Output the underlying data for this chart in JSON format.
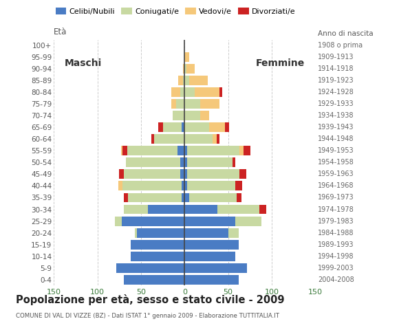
{
  "age_groups_bottom_to_top": [
    "0-4",
    "5-9",
    "10-14",
    "15-19",
    "20-24",
    "25-29",
    "30-34",
    "35-39",
    "40-44",
    "45-49",
    "50-54",
    "55-59",
    "60-64",
    "65-69",
    "70-74",
    "75-79",
    "80-84",
    "85-89",
    "90-94",
    "95-99",
    "100+"
  ],
  "birth_years_bottom_to_top": [
    "2004-2008",
    "1999-2003",
    "1994-1998",
    "1989-1993",
    "1984-1988",
    "1979-1983",
    "1974-1978",
    "1969-1973",
    "1964-1968",
    "1959-1963",
    "1954-1958",
    "1949-1953",
    "1944-1948",
    "1939-1943",
    "1934-1938",
    "1929-1933",
    "1924-1928",
    "1919-1923",
    "1914-1918",
    "1909-1913",
    "1908 o prima"
  ],
  "colors": {
    "celibe": "#4a7cc4",
    "coniugato": "#c8d9a2",
    "vedovo": "#f5c87a",
    "divorziato": "#cc2222"
  },
  "maschi_celibe": [
    70,
    78,
    62,
    62,
    55,
    72,
    42,
    3,
    3,
    5,
    5,
    8,
    0,
    3,
    0,
    0,
    0,
    0,
    0,
    0,
    0
  ],
  "maschi_coniugato": [
    0,
    0,
    0,
    0,
    2,
    8,
    28,
    62,
    68,
    65,
    62,
    58,
    35,
    22,
    14,
    10,
    5,
    2,
    0,
    0,
    0
  ],
  "maschi_vedovo": [
    0,
    0,
    0,
    0,
    0,
    0,
    0,
    0,
    5,
    0,
    0,
    2,
    0,
    0,
    0,
    5,
    10,
    5,
    2,
    0,
    0
  ],
  "maschi_divorziato": [
    0,
    0,
    0,
    0,
    0,
    0,
    0,
    5,
    0,
    5,
    0,
    5,
    3,
    5,
    0,
    0,
    0,
    0,
    0,
    0,
    0
  ],
  "femmine_celibe": [
    62,
    72,
    58,
    62,
    50,
    58,
    38,
    5,
    3,
    3,
    3,
    3,
    0,
    0,
    0,
    0,
    0,
    0,
    0,
    0,
    0
  ],
  "femmine_coniugato": [
    0,
    0,
    0,
    0,
    12,
    30,
    48,
    55,
    55,
    60,
    52,
    60,
    32,
    28,
    18,
    18,
    12,
    5,
    2,
    0,
    0
  ],
  "femmine_vedovo": [
    0,
    0,
    0,
    0,
    0,
    0,
    0,
    0,
    0,
    0,
    0,
    5,
    5,
    18,
    10,
    22,
    28,
    22,
    10,
    5,
    0
  ],
  "femmine_divorziato": [
    0,
    0,
    0,
    0,
    0,
    0,
    8,
    5,
    8,
    8,
    3,
    8,
    3,
    5,
    0,
    0,
    3,
    0,
    0,
    0,
    0
  ],
  "title": "Popolazione per età, sesso e stato civile - 2009",
  "subtitle": "COMUNE DI VAL DI VIZZE (BZ) - Dati ISTAT 1° gennaio 2009 - Elaborazione TUTTITALIA.IT",
  "bg_color": "#ffffff",
  "grid_color": "#cccccc",
  "xlim": 150
}
